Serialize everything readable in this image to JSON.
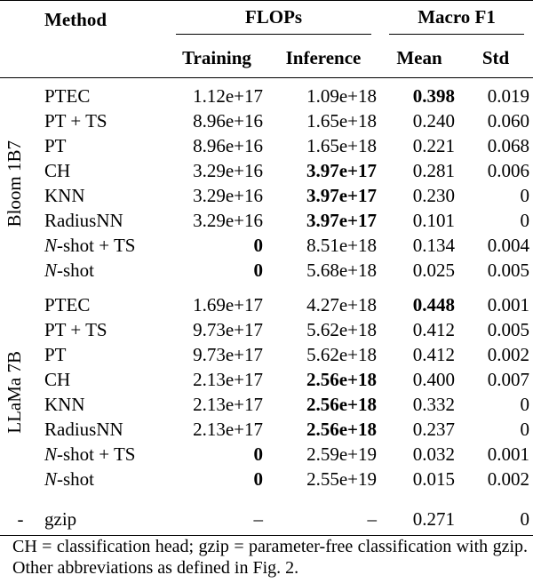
{
  "header": {
    "method": "Method",
    "groups": [
      {
        "label": "FLOPs",
        "columns": [
          "Training",
          "Inference"
        ]
      },
      {
        "label": "Macro F1",
        "columns": [
          "Mean",
          "Std"
        ]
      }
    ]
  },
  "table": {
    "groups": [
      {
        "label": "Bloom 1B7",
        "rows": [
          [
            "PTEC",
            "1.12e+17",
            "1.09e+18",
            {
              "text": "0.398",
              "bold": true
            },
            "0.019"
          ],
          [
            "PT + TS",
            "8.96e+16",
            "1.65e+18",
            "0.240",
            "0.060"
          ],
          [
            "PT",
            "8.96e+16",
            "1.65e+18",
            "0.221",
            "0.068"
          ],
          [
            "CH",
            "3.29e+16",
            {
              "text": "3.97e+17",
              "bold": true
            },
            "0.281",
            "0.006"
          ],
          [
            "KNN",
            "3.29e+16",
            {
              "text": "3.97e+17",
              "bold": true
            },
            "0.230",
            "0"
          ],
          [
            "RadiusNN",
            "3.29e+16",
            {
              "text": "3.97e+17",
              "bold": true
            },
            "0.101",
            "0"
          ],
          [
            "N-shot + TS",
            {
              "text": "0",
              "bold": true
            },
            "8.51e+18",
            "0.134",
            "0.004"
          ],
          [
            "N-shot",
            {
              "text": "0",
              "bold": true
            },
            "5.68e+18",
            "0.025",
            "0.005"
          ]
        ]
      },
      {
        "label": "LLaMa 7B",
        "rows": [
          [
            "PTEC",
            "1.69e+17",
            "4.27e+18",
            {
              "text": "0.448",
              "bold": true
            },
            "0.001"
          ],
          [
            "PT + TS",
            "9.73e+17",
            "5.62e+18",
            "0.412",
            "0.005"
          ],
          [
            "PT",
            "9.73e+17",
            "5.62e+18",
            "0.412",
            "0.002"
          ],
          [
            "CH",
            "2.13e+17",
            {
              "text": "2.56e+18",
              "bold": true
            },
            "0.400",
            "0.007"
          ],
          [
            "KNN",
            "2.13e+17",
            {
              "text": "2.56e+18",
              "bold": true
            },
            "0.332",
            "0"
          ],
          [
            "RadiusNN",
            "2.13e+17",
            {
              "text": "2.56e+18",
              "bold": true
            },
            "0.237",
            "0"
          ],
          [
            "N-shot + TS",
            {
              "text": "0",
              "bold": true
            },
            "2.59e+19",
            "0.032",
            "0.001"
          ],
          [
            "N-shot",
            {
              "text": "0",
              "bold": true
            },
            "2.55e+19",
            "0.015",
            "0.002"
          ]
        ]
      }
    ],
    "baseline": [
      "-",
      "gzip",
      "–",
      "–",
      "0.271",
      "0"
    ]
  },
  "caption": "CH = classification head; gzip = parameter-free classification with gzip. Other abbreviations as defined in Fig. 2."
}
